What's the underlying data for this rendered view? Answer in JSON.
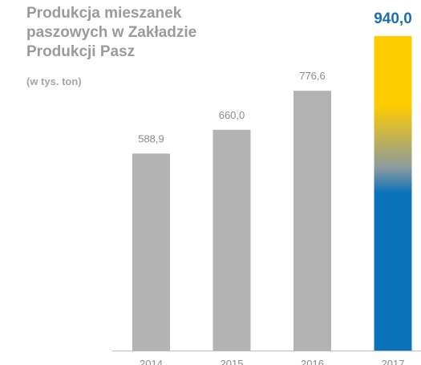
{
  "chart_data": {
    "type": "bar",
    "title": "Produkcja mieszanek paszowych w Zakładzie Produkcji Pasz",
    "subtitle": "(w tys. ton)",
    "categories": [
      "2014",
      "2015",
      "2016",
      "2017"
    ],
    "values": [
      588.9,
      660.0,
      776.6,
      940.0
    ],
    "value_labels": [
      "588,9",
      "660,0",
      "776,6",
      "940,0"
    ],
    "colors": [
      "#b3b3b3",
      "#b3b3b3",
      "#b3b3b3",
      [
        "#ffcc00",
        "#0a72b8"
      ]
    ]
  }
}
